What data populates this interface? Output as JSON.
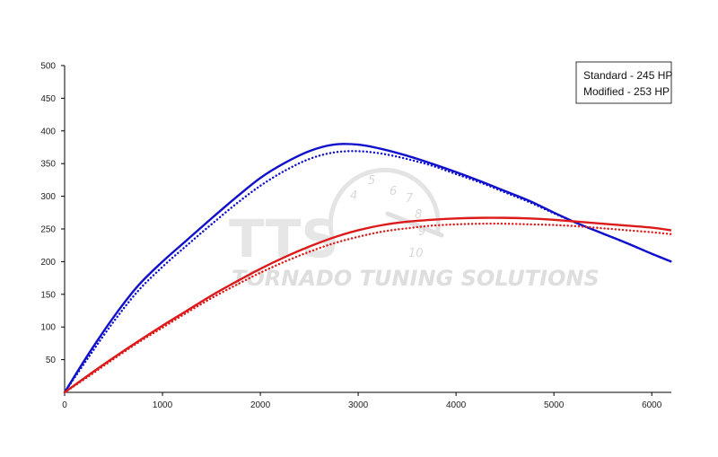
{
  "chart_data": {
    "type": "line",
    "xlim": [
      0,
      6200
    ],
    "ylim": [
      0,
      500
    ],
    "xticks": [
      0,
      1000,
      2000,
      3000,
      4000,
      5000,
      6000
    ],
    "yticks": [
      50,
      100,
      150,
      200,
      250,
      300,
      350,
      400,
      450,
      500
    ],
    "grid": false,
    "legend": {
      "placement": "top-right",
      "entries": [
        "Standard - 245 HP",
        "Modified -  253  HP"
      ]
    },
    "series": [
      {
        "color": "#1010cc",
        "style": "solid",
        "x": [
          0,
          250,
          500,
          750,
          1000,
          1250,
          1500,
          1750,
          2000,
          2250,
          2500,
          2750,
          3000,
          3250,
          3500,
          3750,
          4000,
          4250,
          4500,
          4750,
          5000,
          5250,
          5500,
          5750,
          6000,
          6200
        ],
        "y": [
          0,
          60,
          115,
          163,
          200,
          233,
          266,
          298,
          328,
          351,
          369,
          379,
          379,
          372,
          362,
          350,
          337,
          323,
          308,
          293,
          275,
          258,
          243,
          228,
          212,
          200
        ]
      },
      {
        "color": "#1010cc",
        "style": "dotted",
        "x": [
          0,
          250,
          500,
          750,
          1000,
          1250,
          1500,
          1750,
          2000,
          2250,
          2500,
          2750,
          3000,
          3250,
          3500,
          3750,
          4000,
          4250,
          4500,
          4750,
          5000,
          5250,
          5500,
          5750,
          6000,
          6200
        ],
        "y": [
          0,
          55,
          108,
          155,
          192,
          225,
          257,
          288,
          316,
          339,
          357,
          367,
          369,
          365,
          357,
          347,
          334,
          321,
          306,
          291,
          274,
          258,
          243,
          228,
          212,
          200
        ]
      },
      {
        "color": "#dd1a1a",
        "style": "solid",
        "x": [
          0,
          250,
          500,
          750,
          1000,
          1250,
          1500,
          1750,
          2000,
          2250,
          2500,
          2750,
          3000,
          3250,
          3500,
          3750,
          4000,
          4250,
          4500,
          4750,
          5000,
          5250,
          5500,
          5750,
          6000,
          6200
        ],
        "y": [
          0,
          27,
          53,
          78,
          102,
          125,
          148,
          169,
          189,
          207,
          223,
          237,
          248,
          256,
          261,
          264,
          266,
          267,
          267,
          266,
          264,
          261,
          258,
          255,
          252,
          248
        ]
      },
      {
        "color": "#dd1a1a",
        "style": "dotted",
        "x": [
          0,
          250,
          500,
          750,
          1000,
          1250,
          1500,
          1750,
          2000,
          2250,
          2500,
          2750,
          3000,
          3250,
          3500,
          3750,
          4000,
          4250,
          4500,
          4750,
          5000,
          5250,
          5500,
          5750,
          6000,
          6200
        ],
        "y": [
          0,
          25,
          51,
          76,
          99,
          122,
          144,
          164,
          183,
          200,
          215,
          228,
          238,
          246,
          251,
          255,
          257,
          258,
          258,
          257,
          256,
          254,
          251,
          248,
          245,
          242
        ]
      }
    ]
  },
  "watermark": {
    "logo_text": "TTS",
    "company_text": "TORNADO TUNING SOLUTIONS",
    "gauge_numbers": [
      "4",
      "5",
      "6",
      "7",
      "8",
      "9",
      "10"
    ]
  }
}
